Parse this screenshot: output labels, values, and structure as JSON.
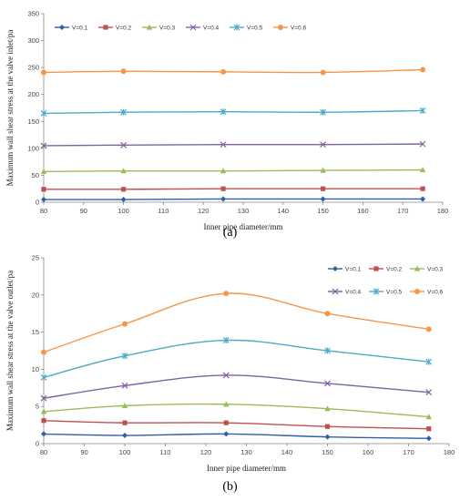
{
  "captions": {
    "a": "(a)",
    "b": "(b)"
  },
  "chart_data": [
    {
      "type": "line",
      "title": "",
      "xlabel": "Inner pipe diameter/mm",
      "ylabel": "Maximum wall shear stress at the valve inlet/pa",
      "xlim": [
        80,
        180
      ],
      "ylim": [
        0,
        350
      ],
      "xticks": [
        80,
        90,
        100,
        110,
        120,
        130,
        140,
        150,
        160,
        170,
        180
      ],
      "yticks": [
        0,
        50,
        100,
        150,
        200,
        250,
        300,
        350
      ],
      "legend_position": "top",
      "grid": false,
      "x": [
        80,
        100,
        125,
        150,
        175
      ],
      "series": [
        {
          "name": "V=0.1",
          "color": "#2e5fa8",
          "marker": "diamond",
          "values": [
            5,
            5,
            6,
            6,
            6
          ]
        },
        {
          "name": "V=0.2",
          "color": "#c0504d",
          "marker": "square",
          "values": [
            24,
            24,
            25,
            25,
            25
          ]
        },
        {
          "name": "V=0.3",
          "color": "#9bbb59",
          "marker": "triangle",
          "values": [
            57,
            58,
            58,
            59,
            60
          ]
        },
        {
          "name": "V=0.4",
          "color": "#8064a2",
          "marker": "x",
          "values": [
            105,
            106,
            107,
            107,
            108
          ]
        },
        {
          "name": "V=0.5",
          "color": "#4bacc6",
          "marker": "star",
          "values": [
            165,
            167,
            168,
            167,
            170
          ]
        },
        {
          "name": "V=0.6",
          "color": "#f79646",
          "marker": "circle",
          "values": [
            241,
            243,
            242,
            241,
            246
          ]
        }
      ]
    },
    {
      "type": "line",
      "title": "",
      "xlabel": "Inner pipe diameter/mm",
      "ylabel": "Maximum wall shear stress at the valve outlet/pa",
      "xlim": [
        80,
        180
      ],
      "ylim": [
        0,
        25
      ],
      "xticks": [
        80,
        90,
        100,
        110,
        120,
        130,
        140,
        150,
        160,
        170,
        180
      ],
      "yticks": [
        0,
        5,
        10,
        15,
        20,
        25
      ],
      "legend_position": "top-right",
      "grid": false,
      "x": [
        80,
        100,
        125,
        150,
        175
      ],
      "series": [
        {
          "name": "V=0.1",
          "color": "#2e5fa8",
          "marker": "diamond",
          "values": [
            1.3,
            1.1,
            1.3,
            0.9,
            0.7
          ]
        },
        {
          "name": "V=0.2",
          "color": "#c0504d",
          "marker": "square",
          "values": [
            3.1,
            2.8,
            2.8,
            2.3,
            2.0
          ]
        },
        {
          "name": "V=0.3",
          "color": "#9bbb59",
          "marker": "triangle",
          "values": [
            4.3,
            5.1,
            5.3,
            4.7,
            3.6
          ]
        },
        {
          "name": "V=0.4",
          "color": "#8064a2",
          "marker": "x",
          "values": [
            6.1,
            7.8,
            9.2,
            8.1,
            6.9
          ]
        },
        {
          "name": "V=0.5",
          "color": "#4bacc6",
          "marker": "star",
          "values": [
            8.9,
            11.8,
            13.9,
            12.5,
            11.0
          ]
        },
        {
          "name": "V=0.6",
          "color": "#f79646",
          "marker": "circle",
          "values": [
            12.3,
            16.1,
            20.2,
            17.5,
            15.4
          ]
        }
      ]
    }
  ]
}
